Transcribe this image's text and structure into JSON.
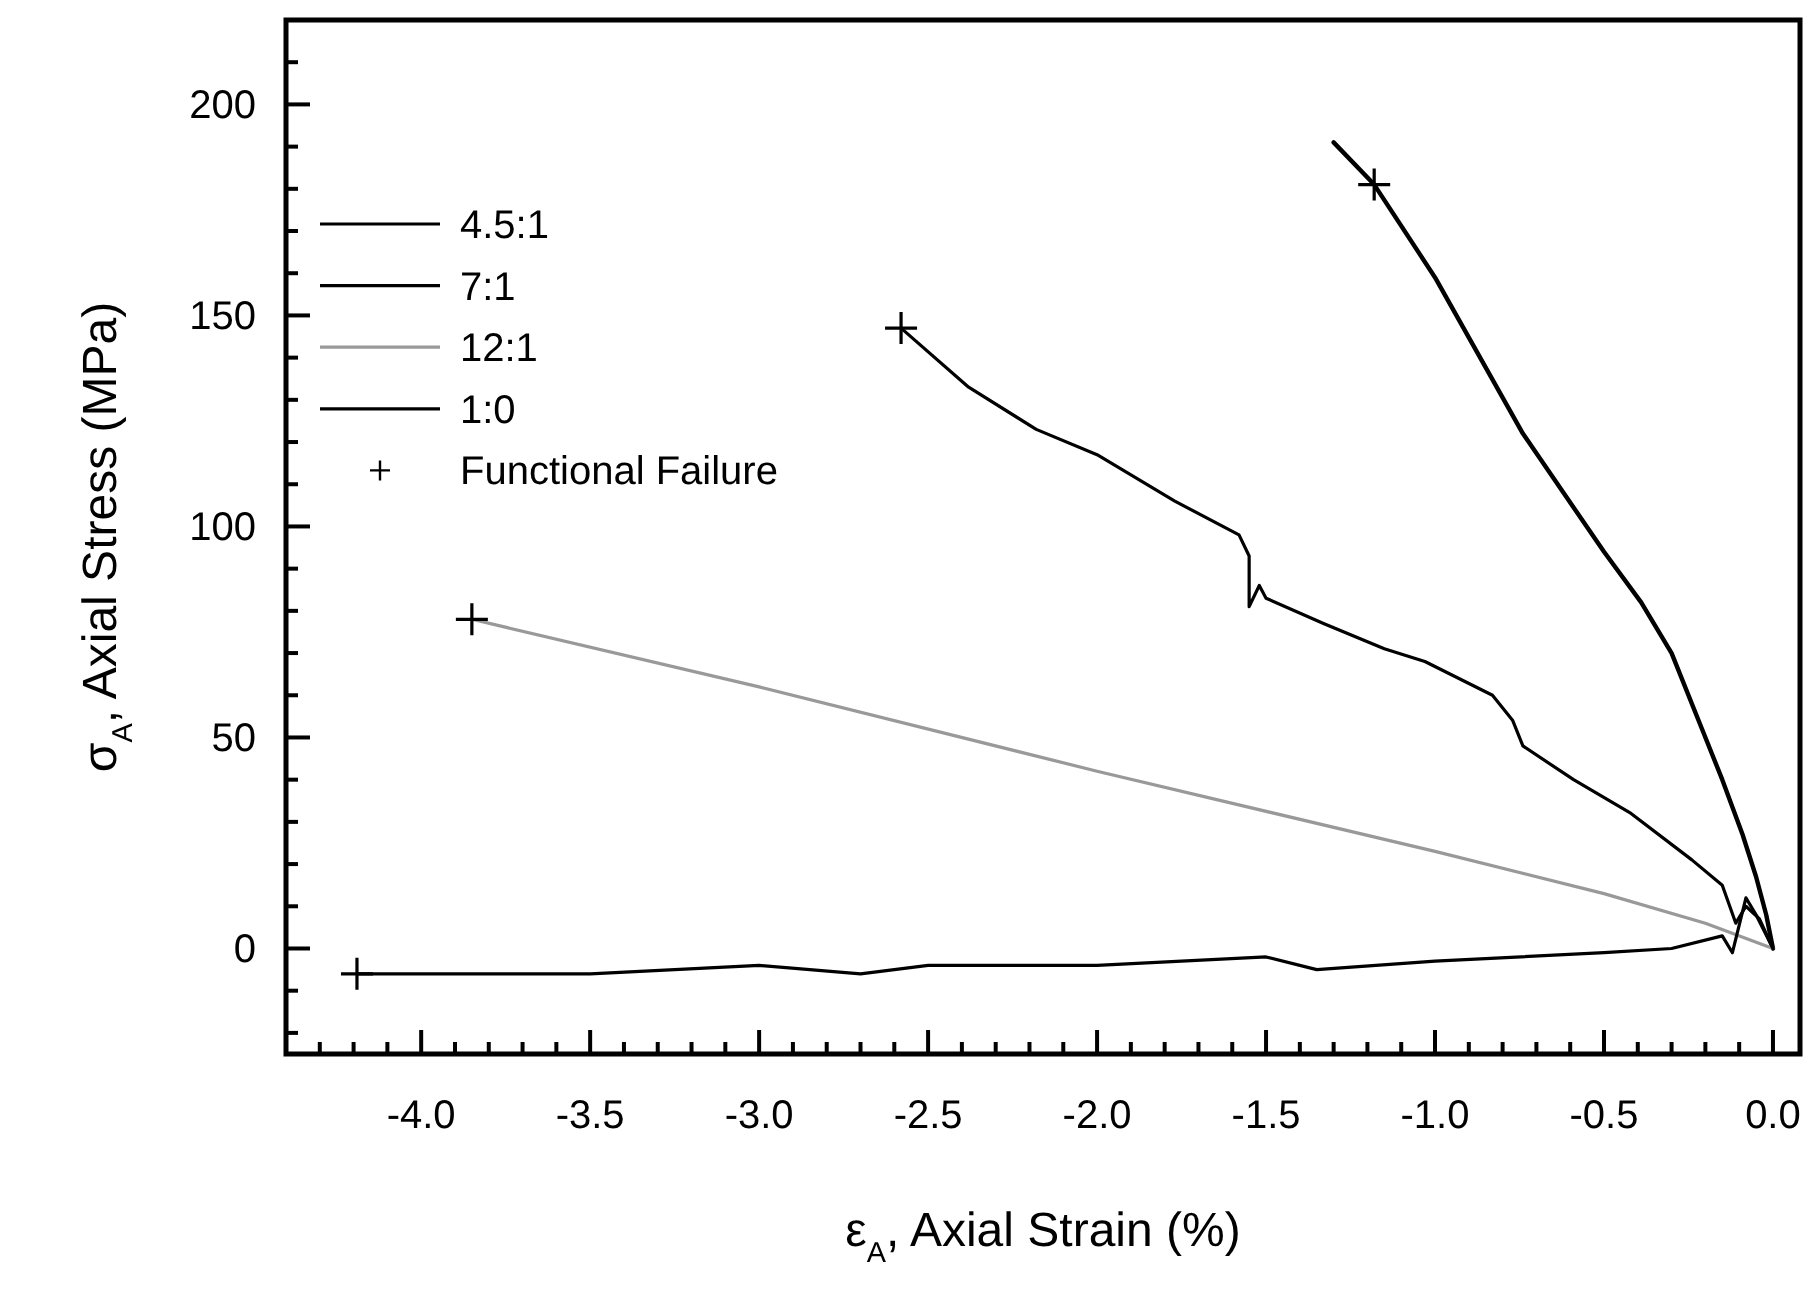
{
  "chart_data": {
    "type": "line",
    "xlabel": "ε$_{A}$, Axial Strain (%)",
    "ylabel": "σ$_{A}$, Axial Stress (MPa)",
    "xlim": [
      -4.4,
      0.08
    ],
    "ylim": [
      -25,
      220
    ],
    "xticks": [
      {
        "value": -4.3,
        "label": null
      },
      {
        "value": -4.2,
        "label": null
      },
      {
        "value": -4.1,
        "label": null
      },
      {
        "value": -4,
        "label": "-4.0"
      },
      {
        "value": -3.9,
        "label": null
      },
      {
        "value": -3.8,
        "label": null
      },
      {
        "value": -3.7,
        "label": null
      },
      {
        "value": -3.6,
        "label": null
      },
      -3.5,
      {
        "value": -3.4,
        "label": null
      },
      {
        "value": -3.3,
        "label": null
      },
      {
        "value": -3.2,
        "label": null
      },
      {
        "value": -3.1,
        "label": null
      },
      {
        "value": -3,
        "label": "-3.0"
      },
      {
        "value": -2.9,
        "label": null
      },
      {
        "value": -2.8,
        "label": null
      },
      {
        "value": -2.7,
        "label": null
      },
      {
        "value": -2.6,
        "label": null
      },
      -2.5,
      {
        "value": -2.4,
        "label": null
      },
      {
        "value": -2.3,
        "label": null
      },
      {
        "value": -2.2,
        "label": null
      },
      {
        "value": -2.1,
        "label": null
      },
      {
        "value": -2,
        "label": "-2.0"
      },
      {
        "value": -1.9,
        "label": null
      },
      {
        "value": -1.8,
        "label": null
      },
      {
        "value": -1.7,
        "label": null
      },
      {
        "value": -1.6,
        "label": null
      },
      -1.5,
      {
        "value": -1.4,
        "label": null
      },
      {
        "value": -1.3,
        "label": null
      },
      {
        "value": -1.2,
        "label": null
      },
      {
        "value": -1.1,
        "label": null
      },
      {
        "value": -1,
        "label": "-1.0"
      },
      {
        "value": -0.9,
        "label": null
      },
      {
        "value": -0.8,
        "label": null
      },
      {
        "value": -0.7,
        "label": null
      },
      {
        "value": -0.6,
        "label": null
      },
      -0.5,
      {
        "value": -0.4,
        "label": null
      },
      {
        "value": -0.3,
        "label": null
      },
      {
        "value": -0.2,
        "label": null
      },
      {
        "value": -0.1,
        "label": null
      },
      {
        "value": 0,
        "label": "0.0"
      }
    ],
    "yticks": [
      {
        "value": -20,
        "label": null
      },
      {
        "value": -10,
        "label": null
      },
      0,
      {
        "value": 10,
        "label": null
      },
      {
        "value": 20,
        "label": null
      },
      {
        "value": 30,
        "label": null
      },
      {
        "value": 40,
        "label": null
      },
      50,
      {
        "value": 60,
        "label": null
      },
      {
        "value": 70,
        "label": null
      },
      {
        "value": 80,
        "label": null
      },
      {
        "value": 90,
        "label": null
      },
      100,
      {
        "value": 110,
        "label": null
      },
      {
        "value": 120,
        "label": null
      },
      {
        "value": 130,
        "label": null
      },
      {
        "value": 140,
        "label": null
      },
      150,
      {
        "value": 160,
        "label": null
      },
      {
        "value": 170,
        "label": null
      },
      {
        "value": 180,
        "label": null
      },
      {
        "value": 190,
        "label": null
      },
      200,
      {
        "value": 210,
        "label": null
      }
    ],
    "grid": false,
    "legend": "top left",
    "line_style": "solid",
    "series": [
      {
        "name": "4.5:1",
        "color": "#000000",
        "x": [
          -1.3,
          -1.18,
          -1.0,
          -0.74,
          -0.5,
          -0.39,
          -0.3,
          -0.21,
          -0.15,
          -0.09,
          -0.05,
          -0.02,
          0
        ],
        "values": [
          191,
          181,
          159,
          122,
          94,
          82,
          70,
          52,
          40,
          27,
          17,
          8,
          0
        ]
      },
      {
        "name": "7:1",
        "color": "#000000",
        "x": [
          -2.58,
          -2.38,
          -2.18,
          -2.0,
          -1.77,
          -1.58,
          -1.55,
          -1.55,
          -1.52,
          -1.5,
          -1.33,
          -1.15,
          -1.03,
          -0.83,
          -0.77,
          -0.74,
          -0.59,
          -0.42,
          -0.24,
          -0.15,
          -0.11,
          -0.08,
          -0.04,
          0
        ],
        "values": [
          147,
          133,
          123,
          117,
          106,
          98,
          93,
          81,
          86,
          83,
          77,
          71,
          68,
          60,
          54,
          48,
          40,
          32,
          21,
          15,
          6,
          10,
          7,
          0
        ]
      },
      {
        "name": "12:1",
        "color": "#999999",
        "x": [
          -3.85,
          -3,
          -2,
          -1,
          -0.5,
          -0.2,
          0
        ],
        "values": [
          78,
          62,
          42,
          23,
          13,
          6,
          0
        ]
      },
      {
        "name": "1:0",
        "color": "#000000",
        "x": [
          -4.19,
          -3.5,
          -3.0,
          -2.7,
          -2.5,
          -2.0,
          -1.5,
          -1.35,
          -1.0,
          -0.5,
          -0.3,
          -0.15,
          -0.12,
          -0.08,
          -0.05,
          0
        ],
        "values": [
          -6,
          -6,
          -4,
          -6,
          -4,
          -4,
          -2,
          -5,
          -3,
          -1,
          0,
          3,
          -1,
          12,
          8,
          0
        ]
      },
      {
        "name": "Functional Failure",
        "type": "scatter",
        "marker": "cross",
        "color": "#000000",
        "x": [
          -1.18,
          -2.58,
          -3.85,
          -4.19
        ],
        "values": [
          181,
          147,
          78,
          -6
        ]
      }
    ]
  }
}
